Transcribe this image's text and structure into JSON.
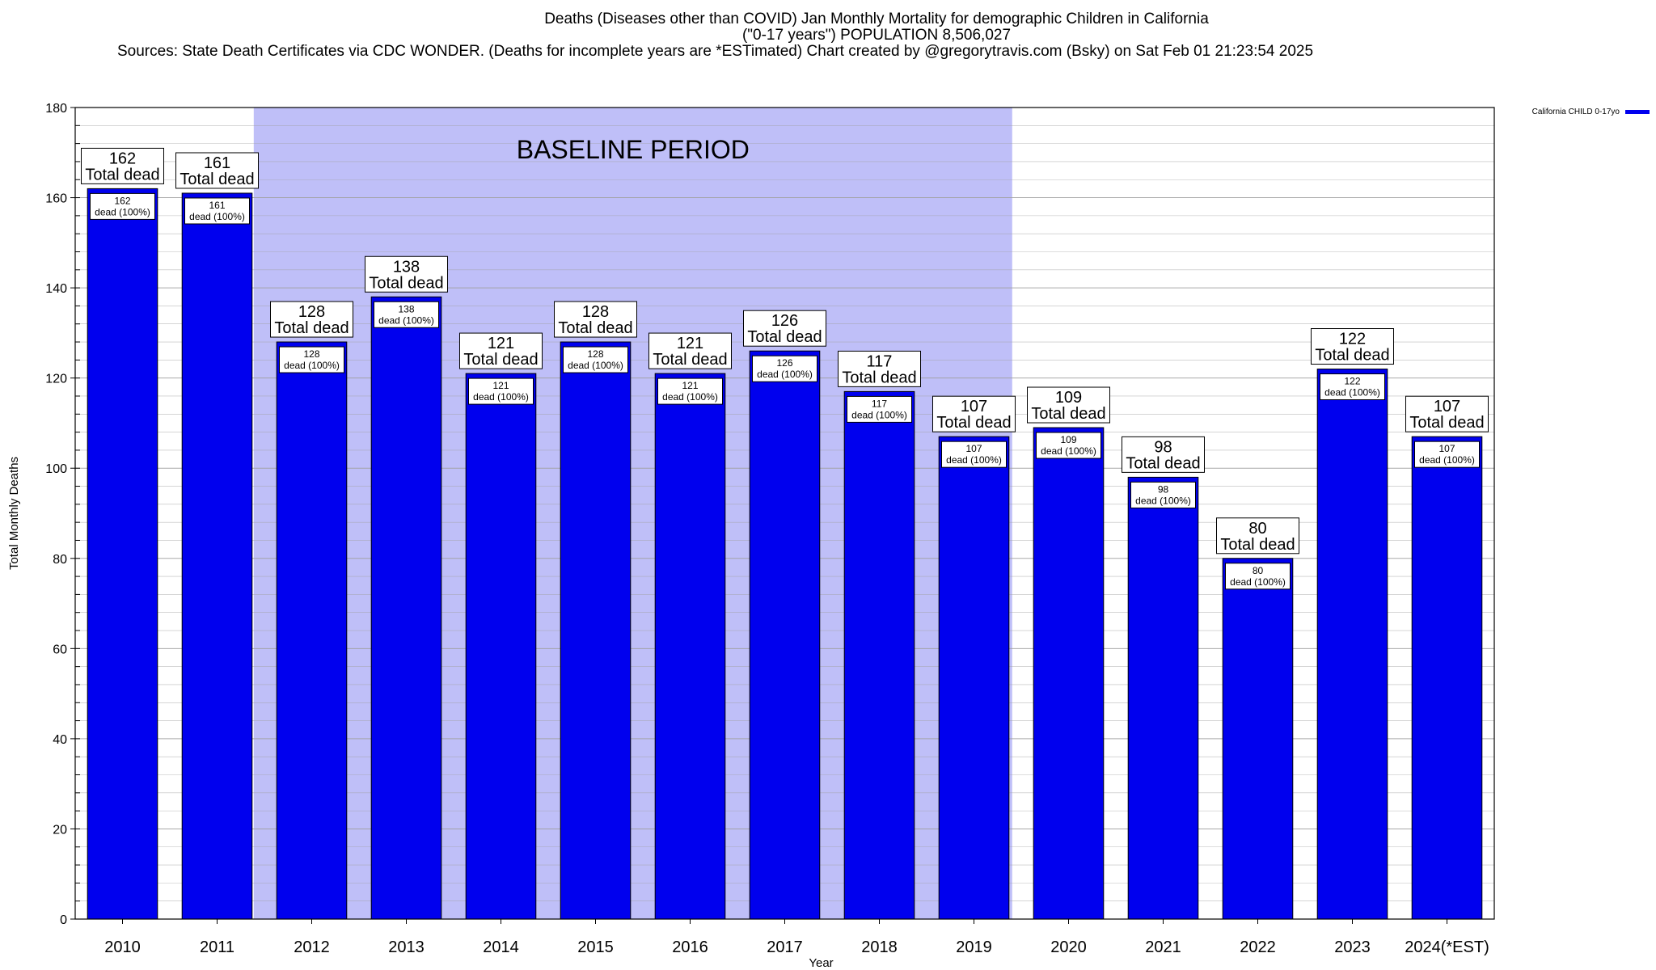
{
  "title_lines": [
    "Deaths (Diseases other than COVID) Jan Monthly Mortality for demographic Children in California",
    "(\"0-17 years\") POPULATION 8,506,027",
    "Sources: State Death Certificates via CDC WONDER. (Deaths for incomplete years are *ESTimated)                Chart created by @gregorytravis.com (Bsky) on Sat Feb 01 21:23:54 2025"
  ],
  "colors": {
    "bar": "#0000ee",
    "baseline_shade": "#bfbff8",
    "grid": "#a0a0a0"
  },
  "chart_data": {
    "type": "bar",
    "title": "Deaths (Diseases other than COVID) Jan Monthly Mortality for demographic Children in California",
    "xlabel": "Year",
    "ylabel": "Total Monthly Deaths",
    "ylim": [
      0,
      180
    ],
    "yticks": [
      0,
      20,
      40,
      60,
      80,
      100,
      120,
      140,
      160,
      180
    ],
    "grid": true,
    "legend": {
      "position": "top-right",
      "entries": [
        "California CHILD 0-17yo"
      ]
    },
    "shaded_region": {
      "label": "BASELINE PERIOD",
      "from": "2012",
      "to": "2019"
    },
    "categories": [
      "2010",
      "2011",
      "2012",
      "2013",
      "2014",
      "2015",
      "2016",
      "2017",
      "2018",
      "2019",
      "2020",
      "2021",
      "2022",
      "2023",
      "2024(*EST)"
    ],
    "series": [
      {
        "name": "California CHILD 0-17yo",
        "values": [
          162,
          161,
          128,
          138,
          121,
          128,
          121,
          126,
          117,
          107,
          109,
          98,
          80,
          122,
          107
        ]
      }
    ],
    "total_label_suffix": "Total dead",
    "inner_label_suffix": "dead (100%)"
  }
}
